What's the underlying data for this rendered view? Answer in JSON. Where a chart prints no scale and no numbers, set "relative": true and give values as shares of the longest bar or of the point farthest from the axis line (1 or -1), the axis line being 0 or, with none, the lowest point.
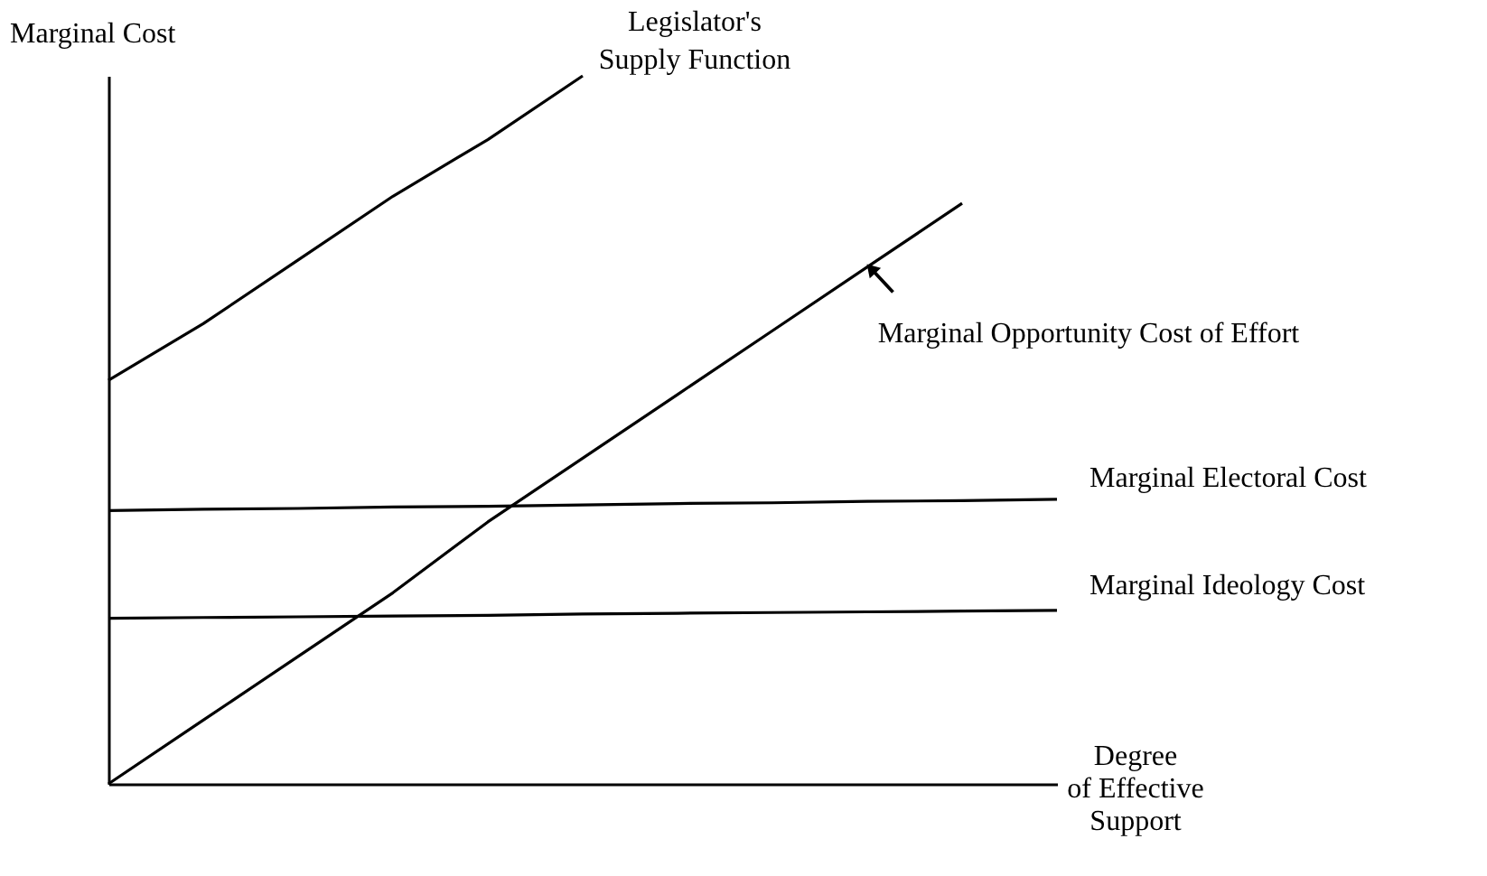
{
  "chart_data": {
    "type": "line",
    "relative": true,
    "line_style": "solid",
    "ylabel": "Marginal Cost",
    "xlabel": "Degree\nof Effective\nSupport",
    "categories": [
      null,
      null,
      null,
      null,
      null,
      null,
      null,
      null,
      null,
      null,
      null
    ],
    "series": [
      {
        "name": "Legislator's\nSupply Function",
        "color": "#000000",
        "values": [
          0.57,
          0.65,
          0.74,
          0.83,
          0.91,
          1.0,
          null,
          null,
          null,
          null,
          null
        ]
      },
      {
        "name": "Marginal Opportunity Cost of Effort",
        "color": "#000000",
        "values": [
          0,
          0.09,
          0.18,
          0.27,
          0.37,
          0.46,
          0.55,
          0.64,
          0.73,
          0.82,
          null
        ]
      },
      {
        "name": "Marginal Electoral Cost",
        "color": "#000000",
        "values": [
          0.386,
          0.388,
          0.389,
          0.391,
          0.392,
          0.394,
          0.396,
          0.397,
          0.399,
          0.4,
          0.402
        ]
      },
      {
        "name": "Marginal Ideology Cost",
        "color": "#000000",
        "values": [
          0.234,
          0.235,
          0.236,
          0.237,
          0.238,
          0.24,
          0.241,
          0.242,
          0.243,
          0.244,
          0.245
        ]
      }
    ]
  }
}
